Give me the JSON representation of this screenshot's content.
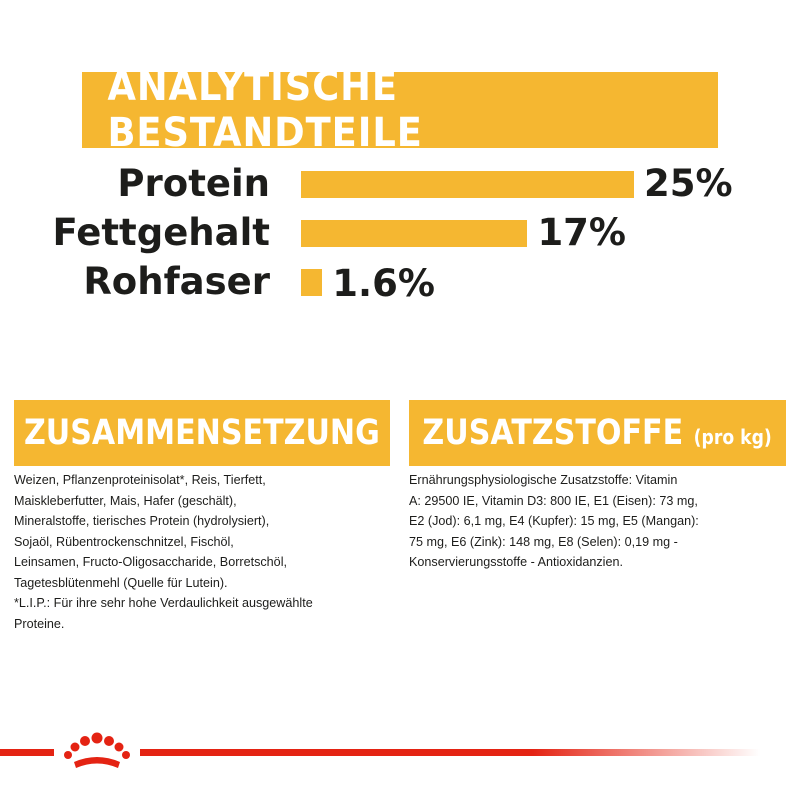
{
  "header": {
    "title": "ANALYTISCHE BESTANDTEILE"
  },
  "chart_data": {
    "type": "bar",
    "orientation": "horizontal",
    "categories": [
      "Protein",
      "Fettgehalt",
      "Rohfaser"
    ],
    "values": [
      25,
      17,
      1.6
    ],
    "value_labels": [
      "25%",
      "17%",
      "1.6%"
    ],
    "unit": "%",
    "color": "#f5b731",
    "xlim": [
      0,
      25
    ],
    "grid": false,
    "legend": "none"
  },
  "composition": {
    "title": "ZUSAMMENSETZUNG",
    "lines": [
      "Weizen, Pflanzenproteinisolat*, Reis, Tierfett,",
      "Maiskleberfutter, Mais, Hafer (geschält),",
      "Mineralstoffe, tierisches Protein (hydrolysiert),",
      "Sojaöl, Rübentrockenschnitzel, Fischöl,",
      "Leinsamen, Fructo-Oligosaccharide, Borretschöl,",
      "Tagetesblütenmehl (Quelle für Lutein).",
      "*L.I.P.: Für ihre sehr hohe Verdaulichkeit ausgewählte",
      "Proteine."
    ]
  },
  "additives": {
    "title": "ZUSATZSTOFFE",
    "title_suffix": "(pro kg)",
    "lines": [
      "Ernährungsphysiologische Zusatzstoffe: Vitamin",
      "A: 29500 IE, Vitamin D3: 800 IE, E1 (Eisen): 73 mg,",
      "E2 (Jod): 6,1 mg, E4 (Kupfer): 15 mg, E5 (Mangan):",
      "75 mg, E6 (Zink): 148 mg, E8 (Selen): 0,19 mg -",
      "Konservierungsstoffe - Antioxidanzien."
    ]
  },
  "footer": {
    "logo_icon": "royal-canin-crown-icon",
    "line_color": "#e42313"
  }
}
